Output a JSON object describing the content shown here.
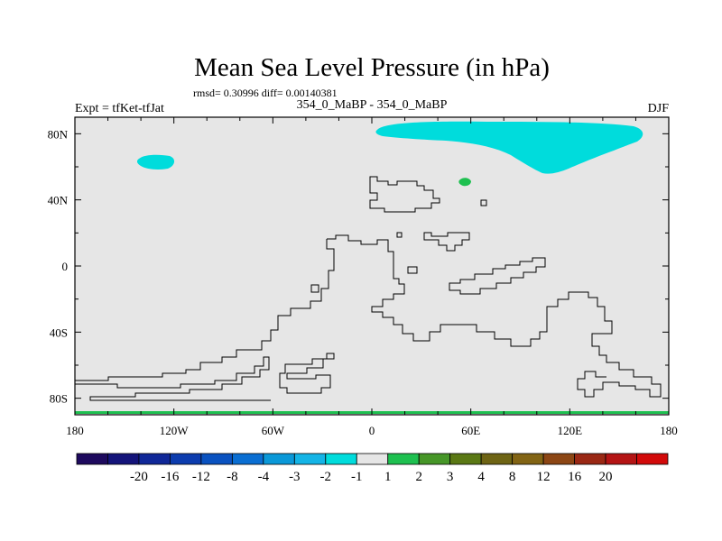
{
  "chart_data": {
    "type": "heatmap",
    "title": "Mean Sea Level Pressure (in hPa)",
    "stats": "rmsd= 0.30996 diff= 0.00140381",
    "experiment_label": "Expt = tfKet-tfJat",
    "subtitle": "354_0_MaBP - 354_0_MaBP",
    "season": "DJF",
    "xlim": [
      -180,
      180
    ],
    "ylim": [
      -90,
      90
    ],
    "x_ticks": [
      {
        "value": -180,
        "label": "180"
      },
      {
        "value": -120,
        "label": "120W"
      },
      {
        "value": -60,
        "label": "60W"
      },
      {
        "value": 0,
        "label": "0"
      },
      {
        "value": 60,
        "label": "60E"
      },
      {
        "value": 120,
        "label": "120E"
      },
      {
        "value": 180,
        "label": "180"
      }
    ],
    "y_ticks": [
      {
        "value": 80,
        "label": "80N"
      },
      {
        "value": 40,
        "label": "40N"
      },
      {
        "value": 0,
        "label": "0"
      },
      {
        "value": -40,
        "label": "40S"
      },
      {
        "value": -80,
        "label": "80S"
      }
    ],
    "background_value_range": [
      -1,
      1
    ],
    "background_color": "#e6e6e6",
    "colorbar": {
      "colors": [
        "#1e0a5e",
        "#14147a",
        "#102898",
        "#0c3cae",
        "#0a52c0",
        "#0a6ed2",
        "#0a98d8",
        "#14b4e6",
        "#00dcdc",
        "#e6e6e6",
        "#1ec050",
        "#469628",
        "#5a7814",
        "#6e6414",
        "#826414",
        "#8c4614",
        "#9a2814",
        "#b41414",
        "#d20a0a"
      ],
      "labels": [
        "-20",
        "-16",
        "-12",
        "-8",
        "-4",
        "-3",
        "-2",
        "-1",
        "1",
        "2",
        "3",
        "4",
        "8",
        "12",
        "16",
        "20"
      ]
    },
    "regions": [
      {
        "category": "-2 to -1",
        "color": "#00dcdc",
        "lon": [
          -138,
          -120
        ],
        "lat": [
          61,
          69
        ],
        "description": "small negative anomaly patch north Pacific"
      },
      {
        "category": "-2 to -1",
        "color": "#00dcdc",
        "lon": [
          2,
          165
        ],
        "lat": [
          55,
          87
        ],
        "description": "large negative anomaly over northern high latitudes"
      },
      {
        "category": "1 to 2",
        "color": "#1ec050",
        "lon": [
          53,
          60
        ],
        "lat": [
          48,
          53
        ],
        "description": "small positive anomaly patch"
      }
    ]
  }
}
